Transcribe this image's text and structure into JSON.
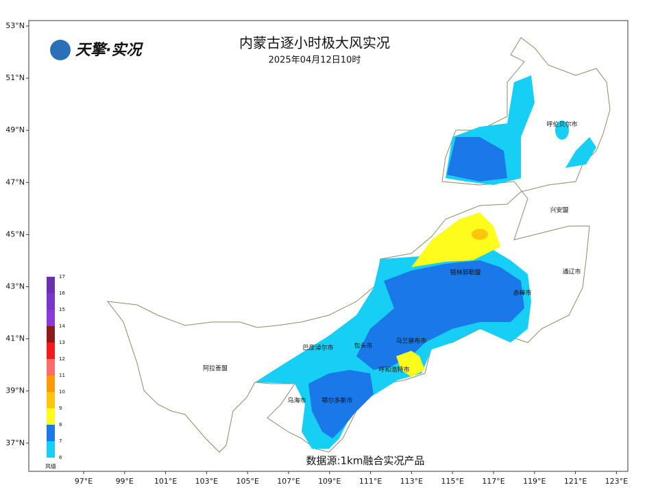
{
  "header": {
    "logo": "天擎·实况",
    "title": "内蒙古逐小时极大风实况",
    "subtitle": "2025年04月12日10时"
  },
  "axes": {
    "lat_labels": [
      "53°N",
      "51°N",
      "49°N",
      "47°N",
      "45°N",
      "43°N",
      "41°N",
      "39°N",
      "37°N"
    ],
    "lon_labels": [
      "97°E",
      "99°E",
      "101°E",
      "103°E",
      "105°E",
      "107°E",
      "109°E",
      "111°E",
      "113°E",
      "115°E",
      "117°E",
      "119°E",
      "121°E",
      "123°E"
    ]
  },
  "places": [
    "呼伦贝尔市",
    "兴安盟",
    "通辽市",
    "锡林郭勒盟",
    "赤峰市",
    "乌兰察布市",
    "包头市",
    "巴彦淖尔市",
    "呼和浩特市",
    "阿拉善盟",
    "乌海市",
    "鄂尔多斯市"
  ],
  "legend": {
    "title": "风级",
    "labels": [
      "6",
      "7",
      "8",
      "9",
      "10",
      "11",
      "12",
      "13",
      "14",
      "15",
      "16",
      "17"
    ],
    "colors": [
      "#17cff5",
      "#1a78e8",
      "#fdfc1c",
      "#fdc60c",
      "#fd9a08",
      "#fd6a6a",
      "#f21a1a",
      "#8c1c1c",
      "#8a3ad8",
      "#7a36c8",
      "#6a30b0"
    ]
  },
  "footer": {
    "source": "数据源:1km融合实况产品"
  }
}
